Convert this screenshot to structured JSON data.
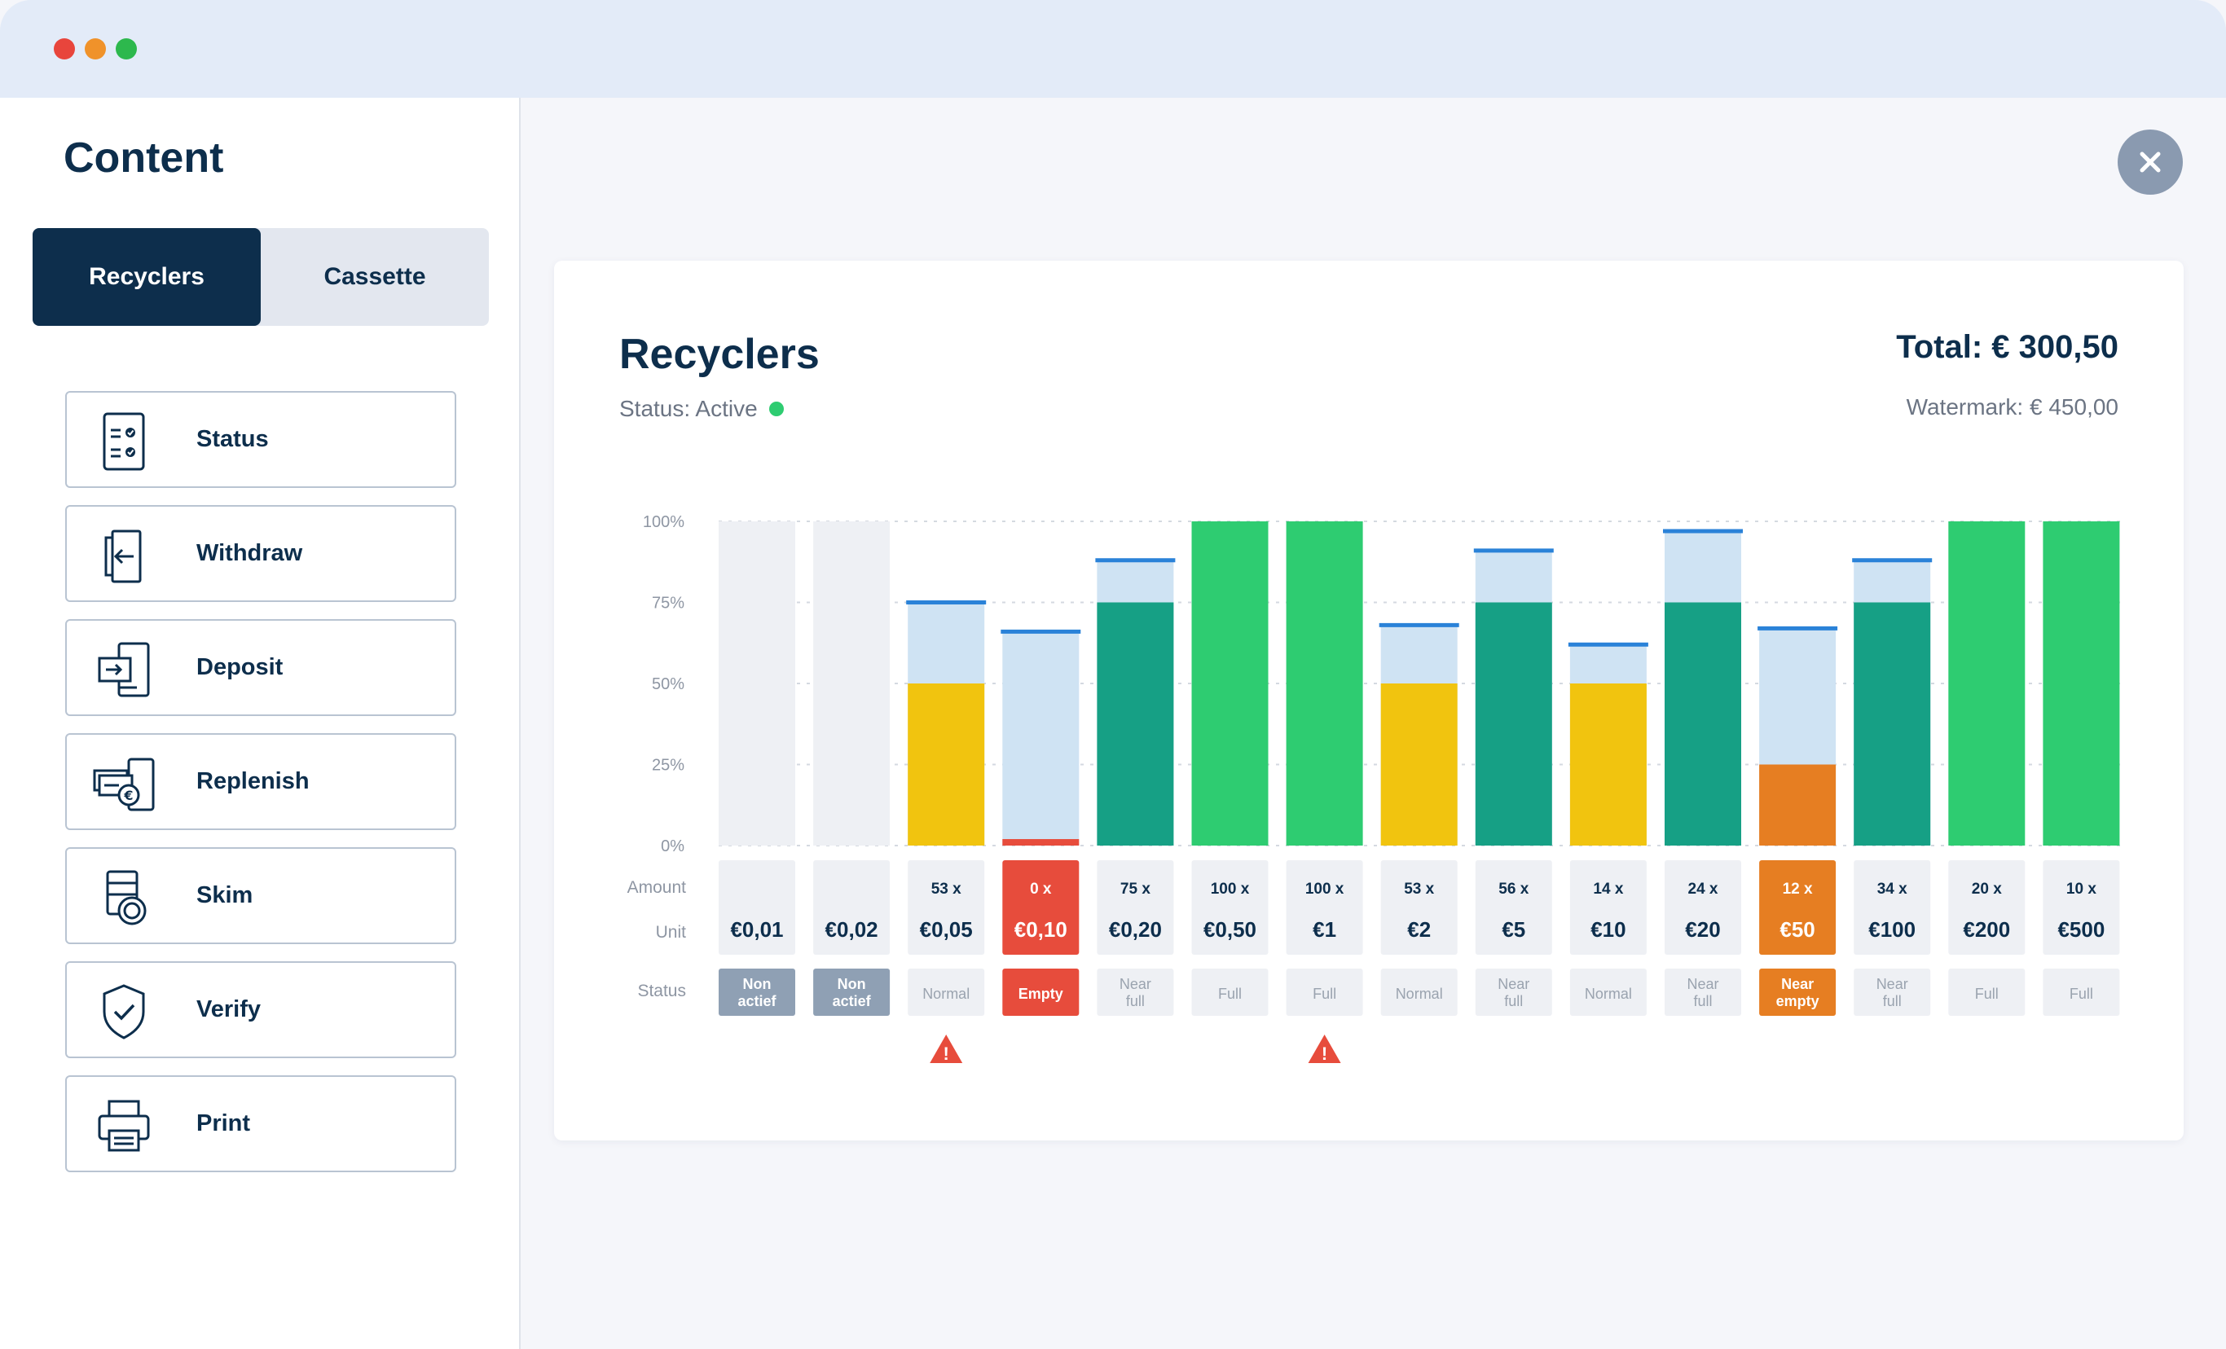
{
  "window": {
    "dots": [
      "#e8453c",
      "#f0922a",
      "#2db84d"
    ]
  },
  "sidebar": {
    "title": "Content",
    "tabs": {
      "active": "Recyclers",
      "inactive": "Cassette"
    },
    "items": [
      {
        "label": "Status",
        "icon": "checklist-icon"
      },
      {
        "label": "Withdraw",
        "icon": "withdraw-icon"
      },
      {
        "label": "Deposit",
        "icon": "deposit-icon"
      },
      {
        "label": "Replenish",
        "icon": "replenish-icon"
      },
      {
        "label": "Skim",
        "icon": "skim-icon"
      },
      {
        "label": "Verify",
        "icon": "shield-check-icon"
      },
      {
        "label": "Print",
        "icon": "printer-icon"
      }
    ]
  },
  "card": {
    "title": "Recyclers",
    "status": "Status: Active",
    "total": "Total: € 300,50",
    "watermark": "Watermark: € 450,00"
  },
  "chart_data": {
    "type": "bar",
    "y_tick_labels": [
      "0%",
      "25%",
      "50%",
      "75%",
      "100%"
    ],
    "ylim": [
      0,
      100
    ],
    "grid": true,
    "row_labels": {
      "amount": "Amount",
      "unit": "Unit",
      "status": "Status"
    },
    "columns": [
      {
        "unit": "€0,01",
        "amount": "",
        "fill": 0,
        "watermark": null,
        "status": "Non actief",
        "state": "inactive",
        "warning": false
      },
      {
        "unit": "€0,02",
        "amount": "",
        "fill": 0,
        "watermark": null,
        "status": "Non actief",
        "state": "inactive",
        "warning": false
      },
      {
        "unit": "€0,05",
        "amount": "53 x",
        "fill": 50,
        "watermark": 75,
        "status": "Normal",
        "state": "normal",
        "warning": true
      },
      {
        "unit": "€0,10",
        "amount": "0 x",
        "fill": 2,
        "watermark": 66,
        "status": "Empty",
        "state": "empty",
        "warning": false
      },
      {
        "unit": "€0,20",
        "amount": "75 x",
        "fill": 75,
        "watermark": 88,
        "status": "Near full",
        "state": "nearfull",
        "warning": false
      },
      {
        "unit": "€0,50",
        "amount": "100 x",
        "fill": 100,
        "watermark": null,
        "status": "Full",
        "state": "full",
        "warning": false
      },
      {
        "unit": "€1",
        "amount": "100 x",
        "fill": 100,
        "watermark": null,
        "status": "Full",
        "state": "full",
        "warning": true
      },
      {
        "unit": "€2",
        "amount": "53 x",
        "fill": 50,
        "watermark": 68,
        "status": "Normal",
        "state": "normal",
        "warning": false
      },
      {
        "unit": "€5",
        "amount": "56 x",
        "fill": 75,
        "watermark": 91,
        "status": "Near full",
        "state": "nearfull",
        "warning": false
      },
      {
        "unit": "€10",
        "amount": "14 x",
        "fill": 50,
        "watermark": 62,
        "status": "Normal",
        "state": "normal",
        "warning": false
      },
      {
        "unit": "€20",
        "amount": "24 x",
        "fill": 75,
        "watermark": 97,
        "status": "Near full",
        "state": "nearfull",
        "warning": false
      },
      {
        "unit": "€50",
        "amount": "12 x",
        "fill": 25,
        "watermark": 67,
        "status": "Near empty",
        "state": "nearempty",
        "warning": false
      },
      {
        "unit": "€100",
        "amount": "34 x",
        "fill": 75,
        "watermark": 88,
        "status": "Near full",
        "state": "nearfull",
        "warning": false
      },
      {
        "unit": "€200",
        "amount": "20 x",
        "fill": 100,
        "watermark": null,
        "status": "Full",
        "state": "full",
        "warning": false
      },
      {
        "unit": "€500",
        "amount": "10 x",
        "fill": 100,
        "watermark": null,
        "status": "Full",
        "state": "full",
        "warning": false
      }
    ],
    "colors": {
      "normal": "#f1c40f",
      "nearfull": "#16a085",
      "full": "#2ecc71",
      "empty": "#e74c3c",
      "nearempty": "#e67e22",
      "capacity": "#cfe3f3",
      "inactive": "#eef0f4",
      "watermark_line": "#2a82d8",
      "warning": "#e74c3c"
    }
  }
}
